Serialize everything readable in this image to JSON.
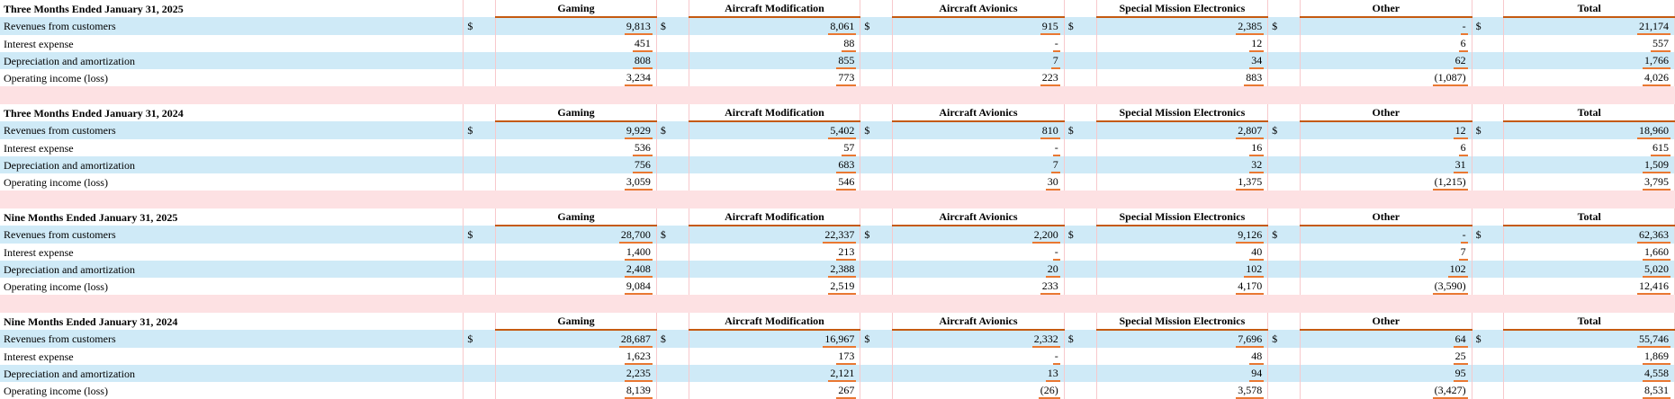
{
  "columns": [
    "Gaming",
    "Aircraft Modification",
    "Aircraft Avionics",
    "Special Mission Electronics",
    "Other",
    "Total"
  ],
  "currency_symbol": "$",
  "row_labels": [
    "Revenues from customers",
    "Interest expense",
    "Depreciation and amortization",
    "Operating income (loss)"
  ],
  "sections": [
    {
      "title": "Three Months Ended January 31, 2025",
      "rows": [
        [
          "9,813",
          "8,061",
          "915",
          "2,385",
          "-",
          "21,174"
        ],
        [
          "451",
          "88",
          "-",
          "12",
          "6",
          "557"
        ],
        [
          "808",
          "855",
          "7",
          "34",
          "62",
          "1,766"
        ],
        [
          "3,234",
          "773",
          "223",
          "883",
          "(1,087)",
          "4,026"
        ]
      ]
    },
    {
      "title": "Three Months Ended January 31, 2024",
      "rows": [
        [
          "9,929",
          "5,402",
          "810",
          "2,807",
          "12",
          "18,960"
        ],
        [
          "536",
          "57",
          "-",
          "16",
          "6",
          "615"
        ],
        [
          "756",
          "683",
          "7",
          "32",
          "31",
          "1,509"
        ],
        [
          "3,059",
          "546",
          "30",
          "1,375",
          "(1,215)",
          "3,795"
        ]
      ]
    },
    {
      "title": "Nine Months Ended January 31, 2025",
      "rows": [
        [
          "28,700",
          "22,337",
          "2,200",
          "9,126",
          "-",
          "62,363"
        ],
        [
          "1,400",
          "213",
          "-",
          "40",
          "7",
          "1,660"
        ],
        [
          "2,408",
          "2,388",
          "20",
          "102",
          "102",
          "5,020"
        ],
        [
          "9,084",
          "2,519",
          "233",
          "4,170",
          "(3,590)",
          "12,416"
        ]
      ]
    },
    {
      "title": "Nine Months Ended January 31, 2024",
      "rows": [
        [
          "28,687",
          "16,967",
          "2,332",
          "7,696",
          "64",
          "55,746"
        ],
        [
          "1,623",
          "173",
          "-",
          "48",
          "25",
          "1,869"
        ],
        [
          "2,235",
          "2,121",
          "13",
          "94",
          "95",
          "4,558"
        ],
        [
          "8,139",
          "267",
          "(26)",
          "3,578",
          "(3,427)",
          "8,531"
        ]
      ]
    }
  ]
}
